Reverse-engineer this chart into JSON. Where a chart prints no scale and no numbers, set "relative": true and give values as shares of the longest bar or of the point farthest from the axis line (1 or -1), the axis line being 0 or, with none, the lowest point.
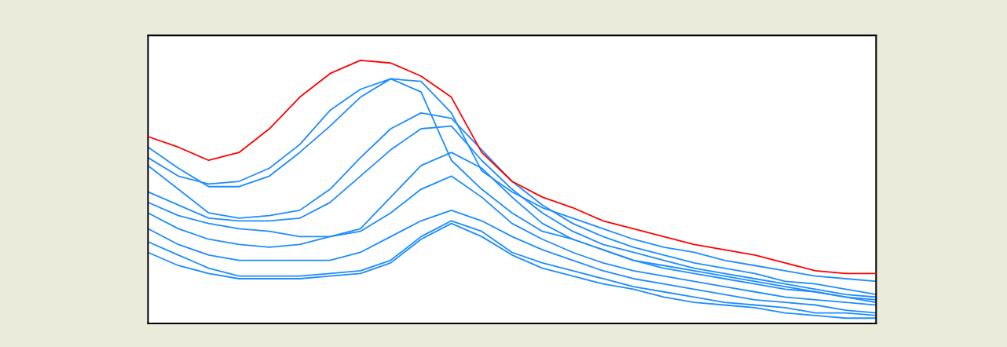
{
  "chart_data": {
    "type": "line",
    "relative": true,
    "grid": false,
    "marker": "none",
    "line_style": "solid",
    "categories": [
      null,
      null,
      null,
      null,
      null,
      null,
      null,
      null,
      null,
      null,
      null,
      null,
      null,
      null,
      null,
      null,
      null,
      null,
      null,
      null,
      null,
      null,
      null,
      null,
      null
    ],
    "series": [
      {
        "color": "#ff0000",
        "values": [
          0.71,
          0.67,
          0.62,
          0.65,
          0.74,
          0.86,
          0.95,
          1.0,
          0.99,
          0.94,
          0.86,
          0.65,
          0.54,
          0.48,
          0.44,
          0.39,
          0.36,
          0.33,
          0.3,
          0.28,
          0.26,
          0.23,
          0.2,
          0.19,
          0.19
        ]
      },
      {
        "color": "#1e8cff",
        "values": [
          0.67,
          0.59,
          0.52,
          0.52,
          0.56,
          0.65,
          0.75,
          0.86,
          0.93,
          0.88,
          0.62,
          0.51,
          0.42,
          0.35,
          0.32,
          0.28,
          0.24,
          0.22,
          0.2,
          0.18,
          0.16,
          0.14,
          0.12,
          0.1,
          0.09
        ]
      },
      {
        "color": "#1e8cff",
        "values": [
          0.63,
          0.56,
          0.53,
          0.54,
          0.59,
          0.68,
          0.81,
          0.89,
          0.93,
          0.92,
          0.8,
          0.58,
          0.5,
          0.44,
          0.4,
          0.36,
          0.32,
          0.29,
          0.27,
          0.24,
          0.22,
          0.2,
          0.18,
          0.17,
          0.16
        ]
      },
      {
        "color": "#1e8cff",
        "values": [
          0.6,
          0.51,
          0.42,
          0.4,
          0.41,
          0.43,
          0.51,
          0.63,
          0.74,
          0.8,
          0.78,
          0.66,
          0.54,
          0.45,
          0.38,
          0.33,
          0.29,
          0.26,
          0.23,
          0.21,
          0.19,
          0.16,
          0.15,
          0.13,
          0.11
        ]
      },
      {
        "color": "#1e8cff",
        "values": [
          0.5,
          0.45,
          0.4,
          0.39,
          0.39,
          0.4,
          0.46,
          0.56,
          0.66,
          0.74,
          0.75,
          0.62,
          0.51,
          0.42,
          0.35,
          0.3,
          0.27,
          0.24,
          0.21,
          0.19,
          0.17,
          0.15,
          0.13,
          0.11,
          0.1
        ]
      },
      {
        "color": "#1e8cff",
        "values": [
          0.46,
          0.41,
          0.38,
          0.36,
          0.35,
          0.33,
          0.33,
          0.36,
          0.48,
          0.6,
          0.65,
          0.59,
          0.48,
          0.38,
          0.32,
          0.28,
          0.24,
          0.21,
          0.19,
          0.17,
          0.15,
          0.13,
          0.12,
          0.1,
          0.08
        ]
      },
      {
        "color": "#1e8cff",
        "values": [
          0.42,
          0.36,
          0.32,
          0.3,
          0.29,
          0.3,
          0.33,
          0.35,
          0.42,
          0.51,
          0.56,
          0.48,
          0.38,
          0.32,
          0.27,
          0.23,
          0.2,
          0.18,
          0.16,
          0.14,
          0.12,
          0.1,
          0.09,
          0.08,
          0.07
        ]
      },
      {
        "color": "#1e8cff",
        "values": [
          0.36,
          0.3,
          0.26,
          0.24,
          0.24,
          0.24,
          0.24,
          0.27,
          0.33,
          0.39,
          0.43,
          0.39,
          0.33,
          0.28,
          0.24,
          0.2,
          0.17,
          0.15,
          0.13,
          0.11,
          0.09,
          0.08,
          0.07,
          0.05,
          0.04
        ]
      },
      {
        "color": "#1e8cff",
        "values": [
          0.31,
          0.26,
          0.21,
          0.18,
          0.18,
          0.18,
          0.19,
          0.2,
          0.24,
          0.33,
          0.39,
          0.35,
          0.27,
          0.23,
          0.2,
          0.17,
          0.14,
          0.12,
          0.1,
          0.08,
          0.07,
          0.06,
          0.04,
          0.04,
          0.03
        ]
      },
      {
        "color": "#1e8cff",
        "values": [
          0.27,
          0.22,
          0.19,
          0.17,
          0.17,
          0.17,
          0.18,
          0.19,
          0.23,
          0.32,
          0.38,
          0.33,
          0.26,
          0.21,
          0.18,
          0.15,
          0.13,
          0.1,
          0.08,
          0.07,
          0.06,
          0.04,
          0.03,
          0.02,
          0.02
        ]
      }
    ]
  }
}
